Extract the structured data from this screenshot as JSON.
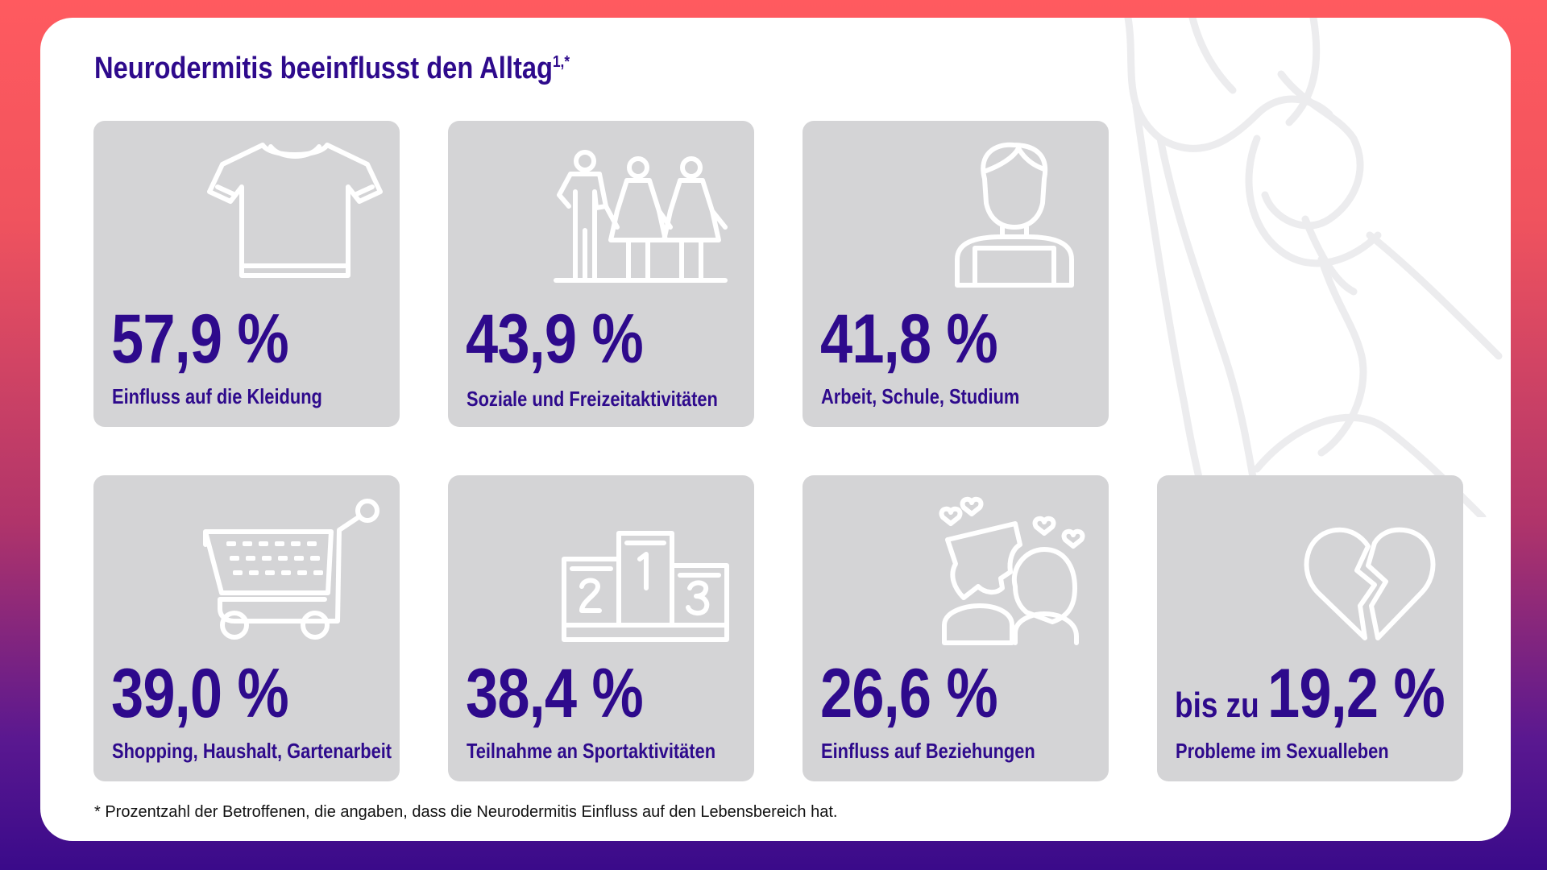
{
  "title": {
    "text": "Neurodermitis beeinflusst den Alltag",
    "superscript": "1,*"
  },
  "tiles": [
    {
      "prefix": "",
      "value": "57,9 %",
      "label": "Einfluss auf die Kleidung",
      "icon": "t-shirt-icon"
    },
    {
      "prefix": "",
      "value": "43,9 %",
      "label": "Soziale und Freizeitaktivitäten",
      "icon": "people-group-icon"
    },
    {
      "prefix": "",
      "value": "41,8 %",
      "label": "Arbeit, Schule, Studium",
      "icon": "person-laptop-icon"
    },
    {
      "prefix": "",
      "value": "39,0 %",
      "label": "Shopping, Haushalt, Gartenarbeit",
      "icon": "shopping-cart-icon"
    },
    {
      "prefix": "",
      "value": "38,4 %",
      "label": "Teilnahme an Sportaktivitäten",
      "icon": "podium-icon"
    },
    {
      "prefix": "",
      "value": "26,6 %",
      "label": "Einfluss auf Beziehungen",
      "icon": "couple-kiss-icon"
    },
    {
      "prefix": "bis zu ",
      "value": "19,2 %",
      "label": "Probleme im Sexualleben",
      "icon": "broken-heart-icon"
    }
  ],
  "footnote": "* Prozentzahl der Betroffenen, die angaben, dass die Neurodermitis Einfluss auf den Lebensbereich hat.",
  "colors": {
    "accent": "#2e0a8c",
    "tile": "#d4d4d6",
    "background_top": "#ff5a5f",
    "background_bottom": "#3a0a8a"
  }
}
